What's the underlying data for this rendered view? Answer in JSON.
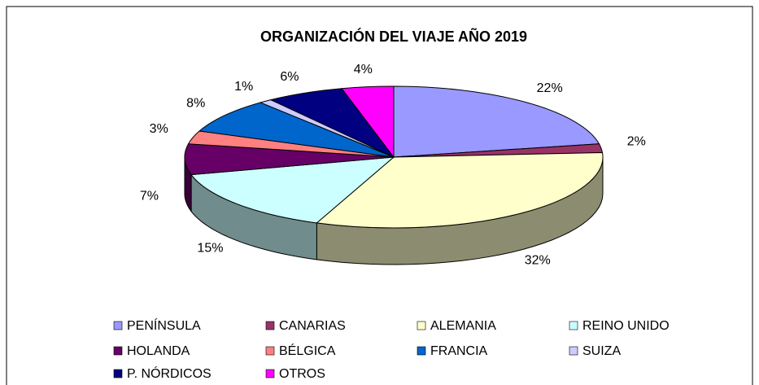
{
  "chart_data": {
    "type": "pie3d",
    "title": "ORGANIZACIÓN DEL VIAJE AÑO 2019",
    "categories": [
      "PENÍNSULA",
      "CANARIAS",
      "ALEMANIA",
      "REINO UNIDO",
      "HOLANDA",
      "BÉLGICA",
      "FRANCIA",
      "SUIZA",
      "P. NÓRDICOS",
      "OTROS"
    ],
    "values": [
      22,
      2,
      32,
      15,
      7,
      3,
      8,
      1,
      6,
      4
    ],
    "value_labels": [
      "22%",
      "2%",
      "32%",
      "15%",
      "7%",
      "3%",
      "8%",
      "1%",
      "6%",
      "4%"
    ],
    "colors": [
      "#9999ff",
      "#993366",
      "#ffffcc",
      "#ccffff",
      "#660066",
      "#ff8080",
      "#0066cc",
      "#ccccff",
      "#000080",
      "#ff00ff"
    ],
    "legend": "bottom"
  }
}
